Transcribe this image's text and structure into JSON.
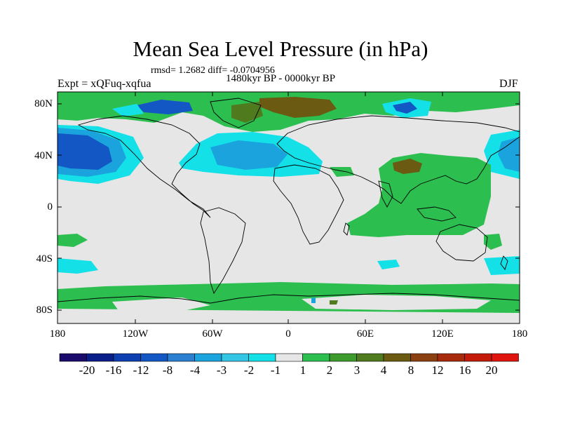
{
  "title": "Mean Sea Level Pressure (in hPa)",
  "stats": "rmsd= 1.2682 diff= -0.0704956",
  "period": "1480kyr BP - 0000kyr BP",
  "experiment": "Expt = xQFuq-xqfua",
  "season": "DJF",
  "lat_ticks": [
    "80N",
    "40N",
    "0",
    "40S",
    "80S"
  ],
  "lon_ticks": [
    "180",
    "120W",
    "60W",
    "0",
    "60E",
    "120E",
    "180"
  ],
  "colorbar": {
    "labels": [
      "-20",
      "-16",
      "-12",
      "-8",
      "-4",
      "-3",
      "-2",
      "-1",
      "1",
      "2",
      "3",
      "4",
      "8",
      "12",
      "16",
      "20"
    ],
    "colors": [
      "#1a0a6b",
      "#0a1e8a",
      "#0d3fb0",
      "#1357c4",
      "#2a7fd0",
      "#1aa3dd",
      "#35c6e6",
      "#14e0e8",
      "#e6e6e6",
      "#2cbf4f",
      "#3d9a2c",
      "#4f7a1e",
      "#6b5a12",
      "#8a4010",
      "#a82a0c",
      "#c41a0a",
      "#e0140e"
    ]
  },
  "colors": {
    "neutral": "#e6e6e6",
    "positive": "#2cbf4f",
    "negative_light": "#14e0e8",
    "negative_mid": "#1aa3dd",
    "negative_strong": "#1357c4",
    "positive_strong": "#6b5a12"
  }
}
